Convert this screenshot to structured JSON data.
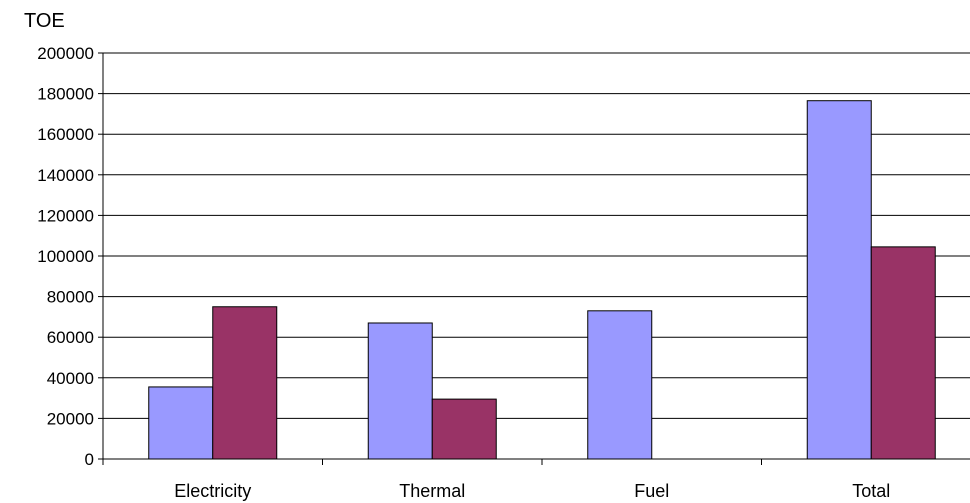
{
  "chart_data": {
    "type": "bar",
    "ylabel": "TOE",
    "categories": [
      "Electricity",
      "Thermal",
      "Fuel",
      "Total"
    ],
    "series": [
      {
        "values": [
          35500,
          67000,
          73000,
          176500
        ],
        "color": "#9999ff"
      },
      {
        "values": [
          75000,
          29500,
          0,
          104500
        ],
        "color": "#993366"
      }
    ],
    "ylim": [
      0,
      200000
    ],
    "yticks": [
      0,
      20000,
      40000,
      60000,
      80000,
      100000,
      120000,
      140000,
      160000,
      180000,
      200000
    ],
    "ytick_labels": [
      "0",
      "20000",
      "40000",
      "60000",
      "80000",
      "100000",
      "120000",
      "140000",
      "160000",
      "180000",
      "200000"
    ],
    "grid": true,
    "legend": "none"
  }
}
